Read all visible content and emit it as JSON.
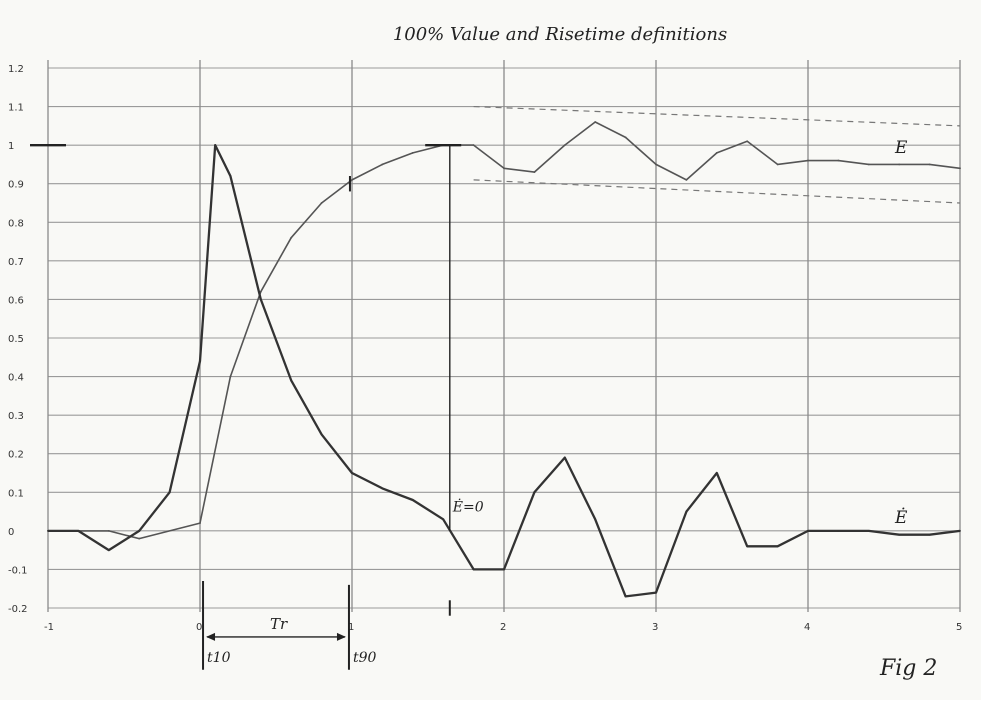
{
  "chart_data": {
    "type": "line",
    "title": "100% Value and Risetime definitions",
    "figure_label": "Fig 2",
    "xlim": [
      -1,
      5
    ],
    "ylim": [
      -0.2,
      1.2
    ],
    "x_ticks": [
      {
        "value": -1,
        "label": "-1"
      },
      {
        "value": 0,
        "label": "0"
      },
      {
        "value": 1,
        "label": "1"
      },
      {
        "value": 2,
        "label": "2"
      },
      {
        "value": 3,
        "label": "3"
      },
      {
        "value": 4,
        "label": "4"
      },
      {
        "value": 5,
        "label": "5"
      }
    ],
    "y_ticks": [
      {
        "value": 1.2,
        "label": "1.2"
      },
      {
        "value": 1.1,
        "label": "1.1"
      },
      {
        "value": 1.0,
        "label": "1"
      },
      {
        "value": 0.9,
        "label": "0.9"
      },
      {
        "value": 0.8,
        "label": "0.8"
      },
      {
        "value": 0.7,
        "label": "0.7"
      },
      {
        "value": 0.6,
        "label": "0.6"
      },
      {
        "value": 0.5,
        "label": "0.5"
      },
      {
        "value": 0.4,
        "label": "0.4"
      },
      {
        "value": 0.3,
        "label": "0.3"
      },
      {
        "value": 0.2,
        "label": "0.2"
      },
      {
        "value": 0.1,
        "label": "0.1"
      },
      {
        "value": 0.0,
        "label": "0"
      },
      {
        "value": -0.1,
        "label": "-0.1"
      },
      {
        "value": -0.2,
        "label": "-0.2"
      }
    ],
    "grid": true,
    "series": [
      {
        "name": "E",
        "color": "#555555",
        "x": [
          -1,
          -0.6,
          -0.4,
          0,
          0.2,
          0.4,
          0.6,
          0.8,
          1.0,
          1.2,
          1.4,
          1.6,
          1.8,
          2.0,
          2.2,
          2.4,
          2.6,
          2.8,
          3.0,
          3.2,
          3.4,
          3.6,
          3.8,
          4.0,
          4.2,
          4.4,
          4.6,
          4.8,
          5.0
        ],
        "y": [
          0.0,
          0.0,
          -0.02,
          0.02,
          0.4,
          0.62,
          0.76,
          0.85,
          0.91,
          0.95,
          0.98,
          1.0,
          1.0,
          0.94,
          0.93,
          1.0,
          1.06,
          1.02,
          0.95,
          0.91,
          0.98,
          1.01,
          0.95,
          0.96,
          0.96,
          0.95,
          0.95,
          0.95,
          0.94
        ]
      },
      {
        "name": "Ė",
        "color": "#333333",
        "x": [
          -1,
          -0.8,
          -0.6,
          -0.4,
          -0.2,
          0,
          0.1,
          0.2,
          0.4,
          0.6,
          0.8,
          1.0,
          1.2,
          1.4,
          1.6,
          1.8,
          2.0,
          2.2,
          2.4,
          2.6,
          2.8,
          3.0,
          3.2,
          3.4,
          3.6,
          3.8,
          4.0,
          4.2,
          4.4,
          4.6,
          4.8,
          5.0
        ],
        "y": [
          0.0,
          0.0,
          -0.05,
          0.0,
          0.1,
          0.44,
          1.0,
          0.92,
          0.6,
          0.39,
          0.25,
          0.15,
          0.11,
          0.08,
          0.03,
          -0.1,
          -0.1,
          0.1,
          0.19,
          0.03,
          -0.17,
          -0.16,
          0.05,
          0.15,
          -0.04,
          -0.04,
          0.0,
          0.0,
          0.0,
          -0.01,
          -0.01,
          0.0
        ]
      }
    ],
    "envelope": {
      "upper": {
        "x": [
          1.8,
          5.0
        ],
        "y": [
          1.1,
          1.05
        ]
      },
      "lower": {
        "x": [
          1.8,
          5.0
        ],
        "y": [
          0.91,
          0.85
        ]
      }
    },
    "reference_level": {
      "y": 1.0,
      "marks": [
        -1,
        1.6
      ]
    },
    "annotations": {
      "e_label": "E",
      "edot_label": "Ė",
      "edot_zero": "Ė=0",
      "edot_zero_x": 1.65,
      "t10": "t10",
      "t10_x": 0.02,
      "t90": "t90",
      "t90_x": 0.98,
      "tr": "Tr"
    }
  }
}
